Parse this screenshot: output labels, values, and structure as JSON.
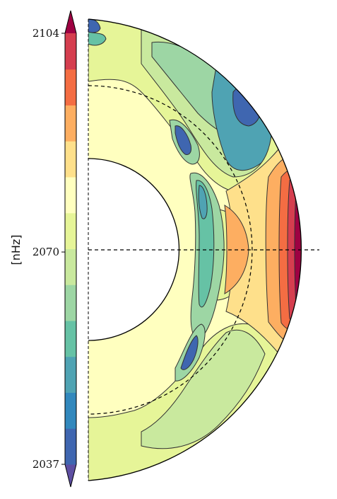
{
  "chart_data": {
    "type": "heatmap",
    "title": "",
    "colorbar": {
      "label": "[nHz]",
      "ticks": [
        2104,
        2070,
        2037
      ],
      "range": [
        2037,
        2104
      ],
      "extend": "both",
      "levels": [
        {
          "color": "#5e4fa2"
        },
        {
          "color": "#3f66b0"
        },
        {
          "color": "#3288bd"
        },
        {
          "color": "#4fa3b3"
        },
        {
          "color": "#66c2a5"
        },
        {
          "color": "#9dd6a4"
        },
        {
          "color": "#c9e99e"
        },
        {
          "color": "#e6f598"
        },
        {
          "color": "#ffffbf"
        },
        {
          "color": "#fee08b"
        },
        {
          "color": "#fdae61"
        },
        {
          "color": "#f46d43"
        },
        {
          "color": "#d53e4f"
        },
        {
          "color": "#9e0142"
        }
      ]
    },
    "domain": {
      "shape": "meridional half-annulus",
      "inner_radius_fraction": 0.395,
      "dashed_radius_fraction": 0.71,
      "equator_dashed": true,
      "axis_dashed": true
    },
    "features": [
      {
        "name": "equatorial-surface-max",
        "value_range": [
          2095,
          2104
        ]
      },
      {
        "name": "mid-latitude-surface-min",
        "value_range": [
          2040,
          2050
        ]
      },
      {
        "name": "tangent-cylinder-bands",
        "value_range": [
          2045,
          2080
        ]
      }
    ]
  }
}
